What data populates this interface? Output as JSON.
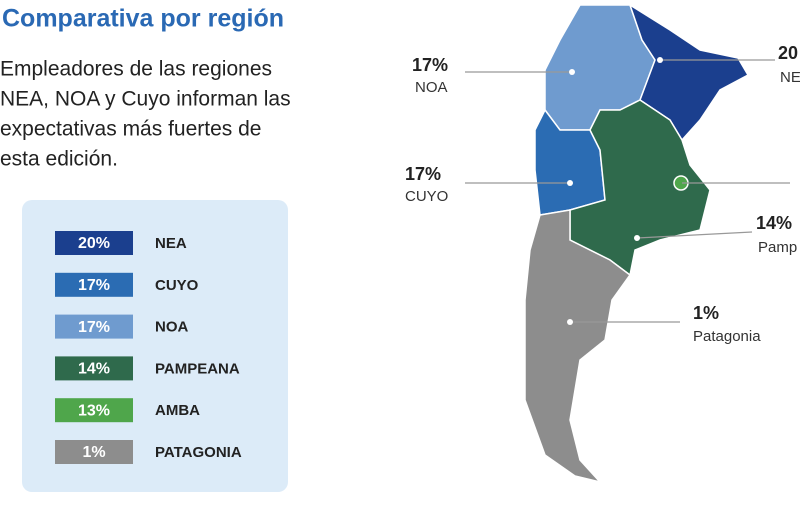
{
  "title": "Comparativa por región",
  "description": [
    "Empleadores de las regiones",
    "NEA, NOA y Cuyo informan las",
    "expectativas más fuertes de",
    "esta edición."
  ],
  "legend": [
    {
      "value": "20%",
      "name": "NEA",
      "color": "#1b3f8e"
    },
    {
      "value": "17%",
      "name": "CUYO",
      "color": "#2b6cb3"
    },
    {
      "value": "17%",
      "name": "NOA",
      "color": "#6f9bcf"
    },
    {
      "value": "14%",
      "name": "PAMPEANA",
      "color": "#2f6a4c"
    },
    {
      "value": "13%",
      "name": "AMBA",
      "color": "#4fa64b"
    },
    {
      "value": "1%",
      "name": "PATAGONIA",
      "color": "#8d8d8d"
    }
  ],
  "callouts": [
    {
      "value": "17%",
      "name": "NOA"
    },
    {
      "value": "17%",
      "name": "CUYO"
    },
    {
      "value": "20",
      "name": "NE"
    },
    {
      "value": "14%",
      "name": "Pamp"
    },
    {
      "value": "1%",
      "name": "Patagonia"
    }
  ]
}
